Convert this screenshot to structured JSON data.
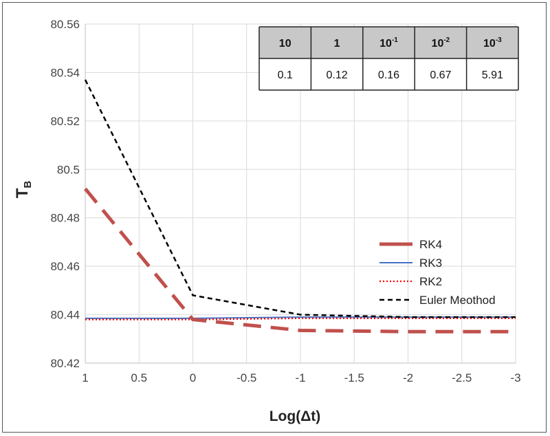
{
  "chart_data": {
    "type": "line",
    "title": "",
    "xlabel": "Log(Δt)",
    "ylabel": "T",
    "ylabel_subscript": "B",
    "xlim": [
      1,
      -3
    ],
    "ylim": [
      80.42,
      80.56
    ],
    "x_reversed": true,
    "x_ticks": [
      1,
      0.5,
      0,
      -0.5,
      -1,
      -1.5,
      -2,
      -2.5,
      -3
    ],
    "x_tick_labels": [
      "1",
      "0.5",
      "0",
      "-0.5",
      "-1",
      "-1.5",
      "-2",
      "-2.5",
      "-3"
    ],
    "y_ticks": [
      80.42,
      80.44,
      80.46,
      80.48,
      80.5,
      80.52,
      80.54,
      80.56
    ],
    "y_tick_labels": [
      "80.42",
      "80.44",
      "80.46",
      "80.48",
      "80.5",
      "80.52",
      "80.54",
      "80.56"
    ],
    "grid": true,
    "legend_position": "bottom-right",
    "series": [
      {
        "name": "RK4",
        "color": "#c0504d",
        "style": "long-dash",
        "x": [
          1,
          0,
          -1,
          -2,
          -3
        ],
        "y": [
          80.492,
          80.438,
          80.4335,
          80.433,
          80.433
        ]
      },
      {
        "name": "RK3",
        "color": "#4472c4",
        "style": "solid",
        "x": [
          1,
          0,
          -1,
          -2,
          -3
        ],
        "y": [
          80.4385,
          80.4385,
          80.439,
          80.439,
          80.439
        ]
      },
      {
        "name": "RK2",
        "color": "#ff0000",
        "style": "dotted",
        "x": [
          1,
          0,
          -1,
          -2,
          -3
        ],
        "y": [
          80.438,
          80.438,
          80.4385,
          80.4385,
          80.4385
        ]
      },
      {
        "name": "Euler Meothod",
        "color": "#000000",
        "style": "short-dash",
        "x": [
          1,
          0,
          -1,
          -2,
          -3
        ],
        "y": [
          80.537,
          80.448,
          80.44,
          80.439,
          80.439
        ]
      }
    ],
    "inset_table": {
      "headers": [
        {
          "base": "10",
          "exp": ""
        },
        {
          "base": "1",
          "exp": ""
        },
        {
          "base": "10",
          "exp": "-1"
        },
        {
          "base": "10",
          "exp": "-2"
        },
        {
          "base": "10",
          "exp": "-3"
        }
      ],
      "values": [
        "0.1",
        "0.12",
        "0.16",
        "0.67",
        "5.91"
      ],
      "header_fill": "#c8c8c8"
    }
  }
}
